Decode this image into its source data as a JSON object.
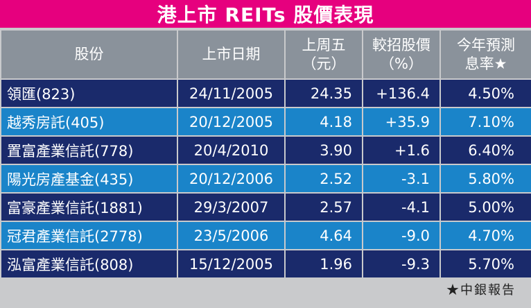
{
  "chart_data": {
    "type": "table",
    "title": "港上市 REITs 股價表現",
    "columns": [
      [
        "股份"
      ],
      [
        "上市日期"
      ],
      [
        "上周五",
        "（元）"
      ],
      [
        "較招股價",
        "（%）"
      ],
      [
        "今年預測",
        "息率★"
      ]
    ],
    "rows": [
      [
        "領匯(823)",
        "24/11/2005",
        "24.35",
        "+136.4",
        "4.50%"
      ],
      [
        "越秀房託(405)",
        "20/12/2005",
        "4.18",
        "+35.9",
        "7.10%"
      ],
      [
        "置富產業信託(778)",
        "20/4/2010",
        "3.90",
        "+1.6",
        "6.40%"
      ],
      [
        "陽光房產基金(435)",
        "20/12/2006",
        "2.52",
        "-3.1",
        "5.80%"
      ],
      [
        "富豪產業信託(1881)",
        "29/3/2007",
        "2.57",
        "-4.1",
        "5.00%"
      ],
      [
        "冠君產業信託(2778)",
        "23/5/2006",
        "4.64",
        "-9.0",
        "4.70%"
      ],
      [
        "泓富產業信託(808)",
        "15/12/2005",
        "1.96",
        "-9.3",
        "5.70%"
      ]
    ],
    "source": "★中銀報告"
  },
  "colors": {
    "title_bg": "#e6007e",
    "header_bg": "#8a929b",
    "row_dark": "#1a2a6b",
    "row_light": "#1a84c9",
    "page_bg": "#c9cacc"
  }
}
